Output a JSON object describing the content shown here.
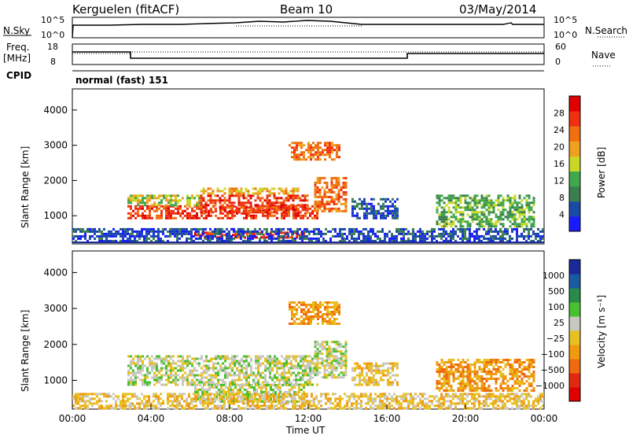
{
  "header": {
    "station": "Kerguelen (fitACF)",
    "beam": "Beam 10",
    "date": "03/May/2014"
  },
  "summary_panels": {
    "nsky_label": "N.Sky",
    "nsky_ticks": [
      "10^5",
      "10^0"
    ],
    "nsearch_label": "N.Search",
    "nsearch_ticks": [
      "10^5",
      "10^0"
    ],
    "freq_label": "Freq.",
    "freq_unit": "[MHz]",
    "freq_ticks": [
      "18",
      "8"
    ],
    "nave_label": "Nave",
    "nave_ticks": [
      "60",
      "0"
    ],
    "cpid_label": "CPID",
    "cpid_value": "normal (fast) 151"
  },
  "colors": {
    "power": [
      "#1a1aff",
      "#1a4aa8",
      "#3b7f4f",
      "#3fa84a",
      "#c8d824",
      "#f0a020",
      "#f07010",
      "#f03010",
      "#e00000"
    ],
    "velocity": [
      "#1a2a9a",
      "#1a5aa0",
      "#2a8a4a",
      "#48c030",
      "#c8c8c0",
      "#e8c020",
      "#f09a10",
      "#f06a10",
      "#e02a10",
      "#e00000"
    ]
  },
  "chart_data": [
    {
      "type": "heatmap",
      "name": "power",
      "ylabel": "Slant Range [km]",
      "ylim": [
        200,
        4600
      ],
      "xlim_hours": [
        0,
        24
      ],
      "y_ticks": [
        "1000",
        "2000",
        "3000",
        "4000"
      ],
      "colorbar_label": "Power [dB]",
      "colorbar_ticks": [
        "4",
        "8",
        "12",
        "16",
        "20",
        "24",
        "28"
      ],
      "regions": [
        {
          "t": [
            2.8,
            12.5
          ],
          "r": [
            900,
            1300
          ],
          "level": 7
        },
        {
          "t": [
            2.8,
            6.5
          ],
          "r": [
            1300,
            1600
          ],
          "level": 4
        },
        {
          "t": [
            6.5,
            12.0
          ],
          "r": [
            1100,
            1600
          ],
          "level": 7
        },
        {
          "t": [
            6.5,
            11.5
          ],
          "r": [
            1600,
            1800
          ],
          "level": 5
        },
        {
          "t": [
            6.2,
            11.8
          ],
          "r": [
            400,
            550
          ],
          "level": 7
        },
        {
          "t": [
            12.3,
            13.9
          ],
          "r": [
            1100,
            2100
          ],
          "level": 6
        },
        {
          "t": [
            11.0,
            13.6
          ],
          "r": [
            2600,
            3100
          ],
          "level": 6
        },
        {
          "t": [
            14.2,
            16.5
          ],
          "r": [
            900,
            1500
          ],
          "level": 1
        },
        {
          "t": [
            18.5,
            23.5
          ],
          "r": [
            700,
            1600
          ],
          "level": 3
        },
        {
          "t": [
            0.0,
            24.0
          ],
          "r": [
            250,
            650
          ],
          "level": 1
        }
      ]
    },
    {
      "type": "heatmap",
      "name": "velocity",
      "xlabel": "Time UT",
      "ylabel": "Slant Range [km]",
      "ylim": [
        200,
        4600
      ],
      "xlim_hours": [
        0,
        24
      ],
      "x_ticks": [
        "00:00",
        "04:00",
        "08:00",
        "12:00",
        "16:00",
        "20:00",
        "00:00"
      ],
      "y_ticks": [
        "1000",
        "2000",
        "3000",
        "4000"
      ],
      "colorbar_label": "Velocity [m s⁻¹]",
      "colorbar_ticks": [
        "1000",
        "500",
        "100",
        "25",
        "−25",
        "−100",
        "−500",
        "−1000"
      ],
      "regions": [
        {
          "t": [
            2.8,
            12.5
          ],
          "r": [
            900,
            1700
          ],
          "level": 4
        },
        {
          "t": [
            6.2,
            11.8
          ],
          "r": [
            400,
            900
          ],
          "level": 4
        },
        {
          "t": [
            12.3,
            13.9
          ],
          "r": [
            1100,
            2100
          ],
          "level": 4
        },
        {
          "t": [
            11.0,
            13.6
          ],
          "r": [
            2600,
            3200
          ],
          "level": 6
        },
        {
          "t": [
            14.2,
            16.5
          ],
          "r": [
            900,
            1500
          ],
          "level": 5
        },
        {
          "t": [
            18.5,
            23.5
          ],
          "r": [
            700,
            1600
          ],
          "level": 6
        },
        {
          "t": [
            0.0,
            24.0
          ],
          "r": [
            250,
            650
          ],
          "level": 5
        }
      ]
    }
  ]
}
